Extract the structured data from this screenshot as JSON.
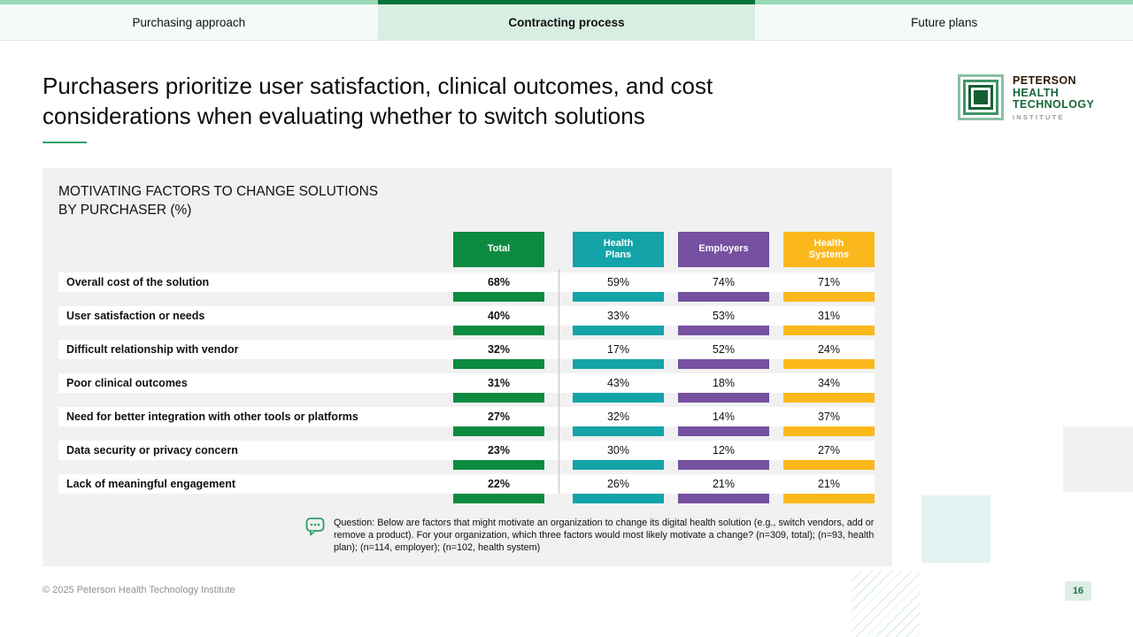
{
  "tabs": [
    {
      "label": "Purchasing approach",
      "active": false
    },
    {
      "label": "Contracting process",
      "active": true
    },
    {
      "label": "Future plans",
      "active": false
    }
  ],
  "page": {
    "title_line1": "Purchasers prioritize user satisfaction, clinical outcomes, and cost",
    "title_line2": "considerations when evaluating whether to switch solutions"
  },
  "logo": {
    "line1": "PETERSON",
    "line2": "HEALTH",
    "line3": "TECHNOLOGY",
    "line4": "INSTITUTE"
  },
  "chart_data": {
    "type": "table",
    "title_line1": "MOTIVATING FACTORS TO CHANGE SOLUTIONS",
    "title_line2": "BY PURCHASER (%)",
    "unit": "%",
    "columns": [
      {
        "key": "total",
        "label": "Total",
        "label_lines": [
          "Total"
        ],
        "color": "#0c8b40"
      },
      {
        "key": "health_plans",
        "label": "Health Plans",
        "label_lines": [
          "Health",
          "Plans"
        ],
        "color": "#14a3a8"
      },
      {
        "key": "employers",
        "label": "Employers",
        "label_lines": [
          "Employers"
        ],
        "color": "#7551a0"
      },
      {
        "key": "health_systems",
        "label": "Health Systems",
        "label_lines": [
          "Health",
          "Systems"
        ],
        "color": "#fbb81c"
      }
    ],
    "rows": [
      {
        "label": "Overall cost of the solution",
        "values": [
          68,
          59,
          74,
          71
        ]
      },
      {
        "label": "User satisfaction or needs",
        "values": [
          40,
          33,
          53,
          31
        ]
      },
      {
        "label": "Difficult relationship with vendor",
        "values": [
          32,
          17,
          52,
          24
        ]
      },
      {
        "label": "Poor clinical outcomes",
        "values": [
          31,
          43,
          18,
          34
        ]
      },
      {
        "label": "Need for better integration with other tools or platforms",
        "values": [
          27,
          32,
          14,
          37
        ]
      },
      {
        "label": "Data security or privacy concern",
        "values": [
          23,
          30,
          12,
          27
        ]
      },
      {
        "label": "Lack of meaningful engagement",
        "values": [
          22,
          26,
          21,
          21
        ]
      }
    ]
  },
  "footnote": {
    "text": "Question: Below are factors that might motivate an organization to change its digital health solution (e.g., switch vendors, add or remove a product). For your organization, which three factors would most likely motivate a change? (n=309, total); (n=93, health plan); (n=114, employer); (n=102, health system)"
  },
  "footer": {
    "copyright": "© 2025 Peterson Health Technology Institute",
    "page_number": "16"
  },
  "colors": {
    "accent_green": "#0c8b40",
    "teal": "#14a3a8",
    "purple": "#7551a0",
    "amber": "#fbb81c",
    "tab_active_strip": "#077239",
    "tab_strip": "#97d7b4",
    "panel_bg": "#f1f1f1"
  }
}
